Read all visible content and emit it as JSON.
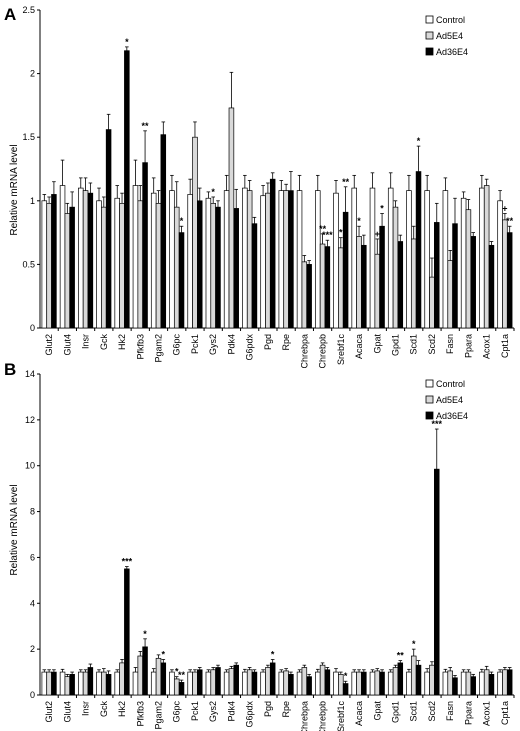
{
  "chart_data": [
    {
      "panel_label": "A",
      "type": "bar",
      "ylabel": "Relative mRNA level",
      "ylim": [
        0,
        2.5
      ],
      "yticks": [
        "0",
        "0.5",
        "1",
        "1.5",
        "2",
        "2.5"
      ],
      "legend_position": "top-right",
      "categories": [
        "Glut2",
        "Glut4",
        "Insr",
        "Gck",
        "Hk2",
        "Pfkfb3",
        "Pgam2",
        "G6pc",
        "Pck1",
        "Gys2",
        "Pdk4",
        "G6pdx",
        "Pgd",
        "Rpe",
        "Chrebpa",
        "Chrebpb",
        "Srebf1c",
        "Acaca",
        "Gpat",
        "Gpd1",
        "Scd1",
        "Scd2",
        "Fasn",
        "Ppara",
        "Acox1",
        "Cpt1a"
      ],
      "series": [
        {
          "name": "Control",
          "color": "#ffffff",
          "values": [
            1.0,
            1.12,
            1.1,
            1.0,
            1.02,
            1.12,
            1.06,
            1.08,
            1.05,
            1.02,
            1.08,
            1.1,
            1.04,
            1.08,
            1.08,
            1.08,
            1.06,
            1.1,
            1.1,
            1.1,
            1.08,
            1.08,
            1.08,
            1.02,
            1.1,
            1.0
          ],
          "errors": [
            0.05,
            0.2,
            0.08,
            0.1,
            0.1,
            0.2,
            0.12,
            0.12,
            0.12,
            0.05,
            0.12,
            0.1,
            0.08,
            0.08,
            0.12,
            0.12,
            0.1,
            0.1,
            0.12,
            0.12,
            0.12,
            0.12,
            0.1,
            0.05,
            0.1,
            0.08
          ]
        },
        {
          "name": "Ad5E4",
          "color": "#d9d9d9",
          "values": [
            0.98,
            0.9,
            1.08,
            0.95,
            0.98,
            1.0,
            0.98,
            0.95,
            1.5,
            0.98,
            1.73,
            1.08,
            1.06,
            1.08,
            0.52,
            0.66,
            0.63,
            0.72,
            0.58,
            0.95,
            0.7,
            0.4,
            0.53,
            0.93,
            1.12,
            0.85
          ],
          "errors": [
            0.05,
            0.08,
            0.1,
            0.08,
            0.08,
            0.12,
            0.1,
            0.2,
            0.12,
            0.05,
            0.28,
            0.08,
            0.08,
            0.05,
            0.05,
            0.08,
            0.08,
            0.08,
            0.12,
            0.05,
            0.1,
            0.15,
            0.08,
            0.08,
            0.05,
            0.05
          ]
        },
        {
          "name": "Ad36E4",
          "color": "#000000",
          "values": [
            1.05,
            0.95,
            1.06,
            1.56,
            2.18,
            1.3,
            1.52,
            0.75,
            1.0,
            0.95,
            0.94,
            0.82,
            1.17,
            1.08,
            0.5,
            0.64,
            0.91,
            0.65,
            0.8,
            0.68,
            1.23,
            0.83,
            0.82,
            0.72,
            0.65,
            0.75
          ],
          "errors": [
            0.1,
            0.12,
            0.08,
            0.12,
            0.03,
            0.25,
            0.1,
            0.05,
            0.1,
            0.05,
            0.15,
            0.05,
            0.05,
            0.15,
            0.03,
            0.05,
            0.2,
            0.08,
            0.1,
            0.05,
            0.2,
            0.15,
            0.2,
            0.03,
            0.03,
            0.05
          ]
        }
      ],
      "annotations": [
        {
          "category": "Hk2",
          "series": "Ad36E4",
          "text": "*"
        },
        {
          "category": "Pfkfb3",
          "series": "Ad36E4",
          "text": "**"
        },
        {
          "category": "G6pc",
          "series": "Ad36E4",
          "text": "*"
        },
        {
          "category": "Gys2",
          "series": "Ad5E4",
          "text": "*"
        },
        {
          "category": "Chrebpb",
          "series": "Ad5E4",
          "text": "**"
        },
        {
          "category": "Chrebpb",
          "series": "Ad36E4",
          "text": "***"
        },
        {
          "category": "Srebf1c",
          "series": "Ad5E4",
          "text": "*"
        },
        {
          "category": "Srebf1c",
          "series": "Ad36E4",
          "text": "**"
        },
        {
          "category": "Acaca",
          "series": "Ad5E4",
          "text": "*"
        },
        {
          "category": "Gpat",
          "series": "Ad5E4",
          "text": "+"
        },
        {
          "category": "Gpat",
          "series": "Ad36E4",
          "text": "*"
        },
        {
          "category": "Scd1",
          "series": "Ad36E4",
          "text": "*"
        },
        {
          "category": "Cpt1a",
          "series": "Ad36E4",
          "text": "**"
        },
        {
          "category": "Cpt1a",
          "series": "Ad5E4",
          "text": "+"
        }
      ]
    },
    {
      "panel_label": "B",
      "type": "bar",
      "ylabel": "Relative mRNA level",
      "ylim": [
        0,
        14
      ],
      "yticks": [
        "0",
        "2",
        "4",
        "6",
        "8",
        "10",
        "12",
        "14"
      ],
      "legend_position": "top-right",
      "categories": [
        "Glut2",
        "Glut4",
        "Insr",
        "Gck",
        "Hk2",
        "Pfkfb3",
        "Pgam2",
        "G6pc",
        "Pck1",
        "Gys2",
        "Pdk4",
        "G6pdx",
        "Pgd",
        "Rpe",
        "Chrebpa",
        "Chrebpb",
        "Srebf1c",
        "Acaca",
        "Gpat",
        "Gpd1",
        "Scd1",
        "Scd2",
        "Fasn",
        "Ppara",
        "Acox1",
        "Cpt1a"
      ],
      "series": [
        {
          "name": "Control",
          "color": "#ffffff",
          "values": [
            1.0,
            1.0,
            1.0,
            1.0,
            1.0,
            1.0,
            1.0,
            1.0,
            1.0,
            1.0,
            1.0,
            1.0,
            1.0,
            1.0,
            1.0,
            1.0,
            1.0,
            1.0,
            1.0,
            1.0,
            1.0,
            1.0,
            1.0,
            1.0,
            1.0,
            1.0
          ],
          "errors": [
            0.1,
            0.12,
            0.1,
            0.1,
            0.1,
            0.2,
            0.15,
            0.1,
            0.1,
            0.1,
            0.1,
            0.12,
            0.1,
            0.1,
            0.1,
            0.12,
            0.15,
            0.1,
            0.1,
            0.1,
            0.12,
            0.15,
            0.12,
            0.1,
            0.12,
            0.1
          ]
        },
        {
          "name": "Ad5E4",
          "color": "#d9d9d9",
          "values": [
            1.0,
            0.8,
            1.0,
            1.0,
            1.4,
            1.7,
            1.6,
            0.7,
            1.0,
            1.1,
            1.15,
            1.1,
            1.2,
            1.05,
            1.2,
            1.3,
            0.9,
            1.0,
            1.05,
            1.2,
            1.7,
            1.3,
            1.05,
            1.0,
            1.1,
            1.1
          ],
          "errors": [
            0.1,
            0.1,
            0.1,
            0.15,
            0.15,
            0.2,
            0.15,
            0.1,
            0.1,
            0.1,
            0.1,
            0.1,
            0.1,
            0.1,
            0.1,
            0.1,
            0.1,
            0.1,
            0.1,
            0.1,
            0.3,
            0.15,
            0.15,
            0.1,
            0.15,
            0.1
          ]
        },
        {
          "name": "Ad36E4",
          "color": "#000000",
          "values": [
            1.0,
            0.9,
            1.2,
            0.9,
            5.5,
            2.1,
            1.4,
            0.55,
            1.1,
            1.2,
            1.3,
            1.0,
            1.4,
            0.9,
            0.8,
            1.1,
            0.5,
            1.0,
            1.0,
            1.4,
            1.3,
            9.85,
            0.75,
            0.8,
            0.9,
            1.1
          ],
          "errors": [
            0.1,
            0.1,
            0.15,
            0.15,
            0.1,
            0.35,
            0.15,
            0.1,
            0.1,
            0.1,
            0.1,
            0.1,
            0.15,
            0.1,
            0.1,
            0.1,
            0.1,
            0.1,
            0.1,
            0.1,
            0.2,
            1.75,
            0.1,
            0.1,
            0.1,
            0.1
          ]
        }
      ],
      "annotations": [
        {
          "category": "Hk2",
          "series": "Ad36E4",
          "text": "***"
        },
        {
          "category": "Pfkfb3",
          "series": "Ad36E4",
          "text": "*"
        },
        {
          "category": "Pgam2",
          "series": "Ad36E4",
          "text": "*"
        },
        {
          "category": "G6pc",
          "series": "Ad5E4",
          "text": "*"
        },
        {
          "category": "G6pc",
          "series": "Ad36E4",
          "text": "**"
        },
        {
          "category": "Pgd",
          "series": "Ad36E4",
          "text": "*"
        },
        {
          "category": "Srebf1c",
          "series": "Ad36E4",
          "text": "*"
        },
        {
          "category": "Gpd1",
          "series": "Ad36E4",
          "text": "**"
        },
        {
          "category": "Scd1",
          "series": "Ad5E4",
          "text": "*"
        },
        {
          "category": "Scd2",
          "series": "Ad36E4",
          "text": "***"
        }
      ]
    }
  ]
}
